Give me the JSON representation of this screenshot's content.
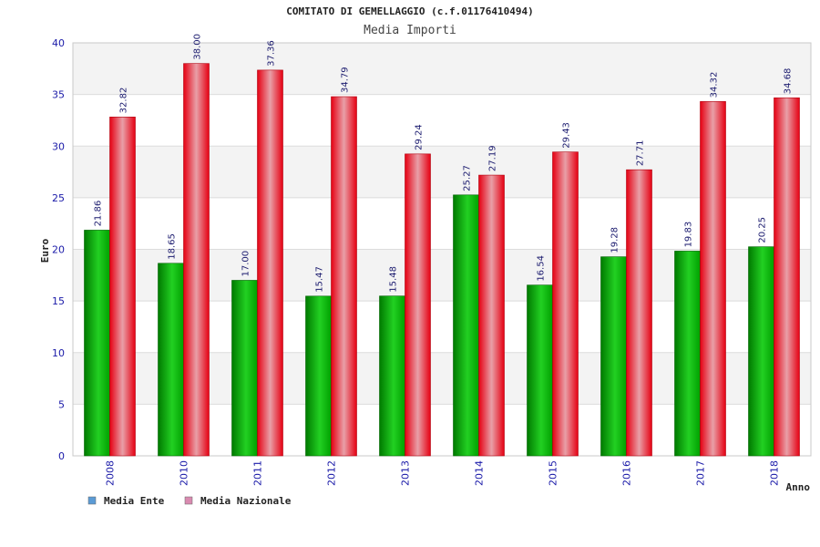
{
  "chart_data": {
    "type": "bar",
    "title": "COMITATO DI GEMELLAGGIO (c.f.01176410494)",
    "subtitle": "Media Importi",
    "ylabel": "Euro",
    "xlabel": "Anno",
    "ylim": [
      0,
      40
    ],
    "yticks": [
      0,
      5,
      10,
      15,
      20,
      25,
      30,
      35,
      40
    ],
    "grid": true,
    "legend_position": "bottom-left",
    "categories": [
      "2008",
      "2010",
      "2011",
      "2012",
      "2013",
      "2014",
      "2015",
      "2016",
      "2017",
      "2018"
    ],
    "series": [
      {
        "name": "Media Ente",
        "values": [
          21.86,
          18.65,
          17.0,
          15.47,
          15.48,
          25.27,
          16.54,
          19.28,
          19.83,
          20.25
        ],
        "labels": [
          "21.86",
          "18.65",
          "17.00",
          "15.47",
          "15.48",
          "25.27",
          "16.54",
          "19.28",
          "19.83",
          "20.25"
        ],
        "color": "#0fb00f",
        "legend_color": "#5b9bd5"
      },
      {
        "name": "Media Nazionale",
        "values": [
          32.82,
          38.0,
          37.36,
          34.79,
          29.24,
          27.19,
          29.43,
          27.71,
          34.32,
          34.68
        ],
        "labels": [
          "32.82",
          "38.00",
          "37.36",
          "34.79",
          "29.24",
          "27.19",
          "29.43",
          "27.71",
          "34.32",
          "34.68"
        ],
        "color": "#ee1122",
        "legend_color": "#d98ab0"
      }
    ]
  }
}
